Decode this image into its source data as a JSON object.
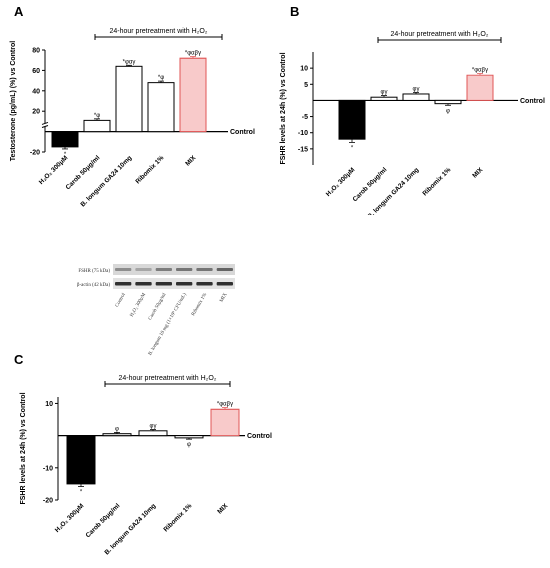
{
  "panels": {
    "a": {
      "letter": "A"
    },
    "b": {
      "letter": "B"
    },
    "c": {
      "letter": "C"
    }
  },
  "chart_data": [
    {
      "id": "A",
      "type": "bar",
      "ylabel": "Testosterone (pg/mL) (%) vs Control",
      "axis_break": true,
      "ylim": [
        -20,
        80
      ],
      "yticks": [
        -20,
        20,
        40,
        60,
        80
      ],
      "baseline_label": "Control",
      "pretreatment_label": "24-hour pretreatment with H₂O₂",
      "categories": [
        "H₂O₂ 300μM",
        "Carob 50μg/ml",
        "B. longum GA24 10mg",
        "Ribomix 1%",
        "MIX"
      ],
      "values": [
        -15,
        11,
        64,
        48,
        72
      ],
      "errors": [
        2,
        1.5,
        1,
        1.5,
        1.5
      ],
      "significance": [
        "*",
        "*φ",
        "*φαγ",
        "*φ",
        "*φαβγ"
      ],
      "colors": [
        "#000000",
        "#ffffff",
        "#ffffff",
        "#ffffff",
        "#f4a7a7"
      ]
    },
    {
      "id": "B",
      "type": "bar",
      "ylabel": "FSHR levels at 24h (%) vs Control",
      "ylim": [
        -20,
        15
      ],
      "yticks": [
        -15,
        -10,
        -5,
        5,
        10
      ],
      "baseline_label": "Control",
      "pretreatment_label": "24-hour pretreatment with H₂O₂",
      "categories": [
        "H₂O₂ 300μM",
        "Carob 50μg/ml",
        "B. longum GA24 10mg",
        "Ribomix 1%",
        "MIX"
      ],
      "values": [
        -12,
        1,
        2,
        -1,
        7.8
      ],
      "errors": [
        1,
        0.5,
        0.5,
        0.5,
        0.5
      ],
      "significance": [
        "*",
        "φγ",
        "φγ",
        "φ",
        "*φαβγ"
      ],
      "colors": [
        "#000000",
        "#ffffff",
        "#ffffff",
        "#ffffff",
        "#f4a7a7"
      ]
    },
    {
      "id": "C",
      "type": "bar",
      "ylabel": "FSHR levels at 24h (%) vs Control",
      "ylim": [
        -20,
        12
      ],
      "yticks": [
        -20,
        -10,
        10
      ],
      "baseline_label": "Control",
      "pretreatment_label": "24-hour pretreatment with H₂O₂",
      "categories": [
        "H₂O₂ 300μM",
        "Carob 50μg/ml",
        "B. longum GA24 10mg",
        "Ribomix 1%",
        "MIX"
      ],
      "values": [
        -15,
        0.6,
        1.5,
        -0.7,
        8.2
      ],
      "errors": [
        0.8,
        0.4,
        0.4,
        0.4,
        0.5
      ],
      "significance": [
        "*",
        "φ",
        "φγ",
        "φ",
        "*φαβγ"
      ],
      "colors": [
        "#000000",
        "#ffffff",
        "#ffffff",
        "#ffffff",
        "#f4a7a7"
      ]
    }
  ],
  "western_blot": {
    "rows": [
      "FSHR (75 kDa)",
      "β-actin (42 kDa)"
    ],
    "lanes": [
      "Control",
      "H₂O₂ 300μM",
      "Carob 50μg/ml",
      "B. longum 10 mg (1×10⁹ CFU/mL)",
      "Ribomix 1%",
      "MIX"
    ],
    "band_intensity": {
      "FSHR": [
        0.45,
        0.3,
        0.55,
        0.6,
        0.6,
        0.7
      ],
      "beta_actin": [
        0.85,
        0.85,
        0.85,
        0.85,
        0.85,
        0.85
      ]
    }
  }
}
